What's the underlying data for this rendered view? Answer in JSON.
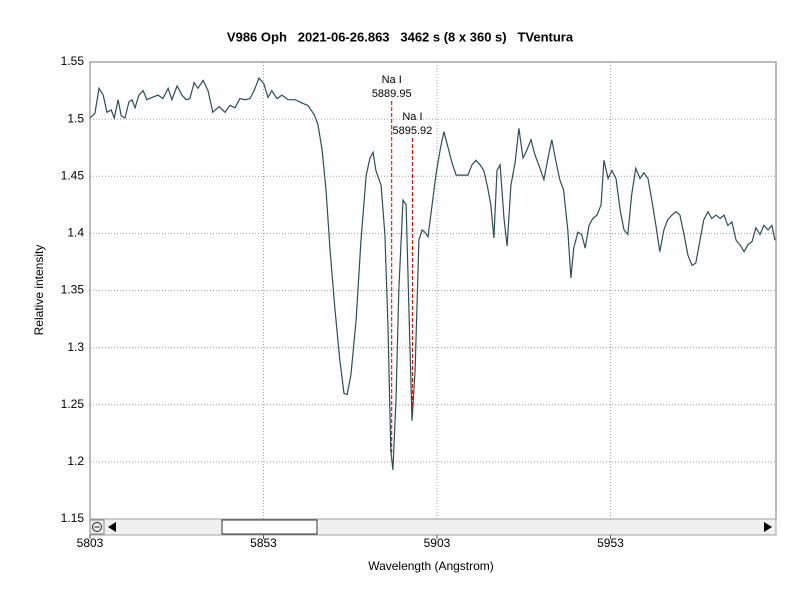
{
  "chart_data": {
    "type": "line",
    "title": "V986 Oph   2021-06-26.863   3462 s (8 x 360 s)   TVentura",
    "x_label": "Wavelength (Angstrom)",
    "y_label": "Relative intensity",
    "x": [
      5803.0,
      5804.4,
      5805.6,
      5806.8,
      5807.9,
      5809.1,
      5810.0,
      5811.1,
      5812.0,
      5813.1,
      5814.2,
      5815.1,
      5816.0,
      5817.1,
      5818.3,
      5819.4,
      5820.9,
      5822.6,
      5824.0,
      5825.5,
      5826.6,
      5828.1,
      5829.5,
      5830.7,
      5831.8,
      5833.0,
      5834.1,
      5835.6,
      5837.0,
      5838.4,
      5840.2,
      5841.9,
      5843.3,
      5844.8,
      5846.2,
      5847.6,
      5849.1,
      5850.3,
      5851.7,
      5853.1,
      5854.3,
      5855.4,
      5856.9,
      5858.3,
      5860.1,
      5862.1,
      5864.1,
      5865.8,
      5867.6,
      5868.7,
      5869.9,
      5871.0,
      5872.2,
      5873.6,
      5875.0,
      5876.2,
      5877.1,
      5878.2,
      5879.7,
      5881.1,
      5882.6,
      5883.7,
      5884.6,
      5885.4,
      5886.9,
      5888.0,
      5888.9,
      5889.7,
      5890.3,
      5891.2,
      5892.0,
      5893.2,
      5894.1,
      5895.2,
      5895.8,
      5896.7,
      5897.8,
      5898.7,
      5899.5,
      5900.4,
      5901.6,
      5902.7,
      5903.9,
      5905.0,
      5906.2,
      5907.3,
      5908.5,
      5910.2,
      5911.9,
      5913.1,
      5914.2,
      5915.4,
      5916.5,
      5917.6,
      5918.5,
      5919.4,
      5920.3,
      5921.2,
      5922.3,
      5923.2,
      5924.3,
      5925.5,
      5926.6,
      5927.8,
      5928.9,
      5930.1,
      5931.2,
      5932.7,
      5933.8,
      5935.0,
      5936.1,
      5937.2,
      5938.4,
      5939.5,
      5940.7,
      5941.6,
      5942.4,
      5943.6,
      5944.7,
      5945.7,
      5946.8,
      5947.9,
      5949.1,
      5950.3,
      5951.1,
      5952.3,
      5953.4,
      5954.6,
      5955.8,
      5956.9,
      5958.0,
      5959.1,
      5960.3,
      5961.5,
      5962.6,
      5963.8,
      5964.9,
      5966.1,
      5967.2,
      5968.4,
      5969.5,
      5970.7,
      5971.9,
      5973.0,
      5974.2,
      5975.3,
      5976.5,
      5977.6,
      5978.8,
      5979.9,
      5981.1,
      5982.2,
      5983.4,
      5984.6,
      5985.7,
      5986.8,
      5988.0,
      5989.2,
      5990.3,
      5991.5,
      5992.6,
      5993.8,
      5994.9,
      5996.1,
      5997.2,
      5998.4,
      5999.5,
      6000.4
    ],
    "values": [
      1.501,
      1.505,
      1.527,
      1.521,
      1.506,
      1.508,
      1.501,
      1.517,
      1.503,
      1.501,
      1.515,
      1.517,
      1.51,
      1.521,
      1.525,
      1.517,
      1.519,
      1.521,
      1.518,
      1.527,
      1.517,
      1.529,
      1.521,
      1.517,
      1.518,
      1.532,
      1.527,
      1.534,
      1.525,
      1.506,
      1.511,
      1.506,
      1.512,
      1.51,
      1.518,
      1.517,
      1.518,
      1.525,
      1.536,
      1.531,
      1.519,
      1.525,
      1.518,
      1.521,
      1.517,
      1.517,
      1.514,
      1.512,
      1.504,
      1.495,
      1.473,
      1.438,
      1.385,
      1.333,
      1.289,
      1.26,
      1.259,
      1.276,
      1.324,
      1.394,
      1.451,
      1.466,
      1.471,
      1.455,
      1.442,
      1.399,
      1.315,
      1.21,
      1.193,
      1.254,
      1.35,
      1.429,
      1.425,
      1.302,
      1.236,
      1.28,
      1.394,
      1.403,
      1.401,
      1.397,
      1.425,
      1.451,
      1.473,
      1.489,
      1.475,
      1.462,
      1.451,
      1.451,
      1.451,
      1.46,
      1.464,
      1.46,
      1.455,
      1.44,
      1.425,
      1.396,
      1.455,
      1.46,
      1.413,
      1.389,
      1.442,
      1.462,
      1.492,
      1.466,
      1.473,
      1.482,
      1.469,
      1.457,
      1.447,
      1.466,
      1.482,
      1.464,
      1.447,
      1.438,
      1.403,
      1.361,
      1.387,
      1.401,
      1.399,
      1.387,
      1.407,
      1.413,
      1.416,
      1.425,
      1.464,
      1.448,
      1.455,
      1.448,
      1.42,
      1.403,
      1.399,
      1.434,
      1.457,
      1.448,
      1.453,
      1.448,
      1.429,
      1.407,
      1.384,
      1.403,
      1.412,
      1.416,
      1.419,
      1.416,
      1.399,
      1.381,
      1.372,
      1.374,
      1.394,
      1.412,
      1.419,
      1.413,
      1.416,
      1.413,
      1.416,
      1.407,
      1.41,
      1.394,
      1.39,
      1.384,
      1.39,
      1.393,
      1.405,
      1.399,
      1.407,
      1.403,
      1.407,
      1.394
    ],
    "color": "#2f4f4f",
    "xlim": [
      5803,
      6000.7
    ],
    "ylim": [
      1.15,
      1.55
    ],
    "xticks": [
      5803,
      5853,
      5903,
      5953
    ],
    "yticks": [
      1.15,
      1.2,
      1.25,
      1.3,
      1.35,
      1.4,
      1.45,
      1.5,
      1.55
    ],
    "grid": true,
    "annotations": [
      {
        "name": "Na I",
        "x": 5889.95,
        "color": "#cc0000"
      },
      {
        "name": "Na I",
        "x": 5895.92,
        "color": "#cc0000"
      }
    ]
  }
}
